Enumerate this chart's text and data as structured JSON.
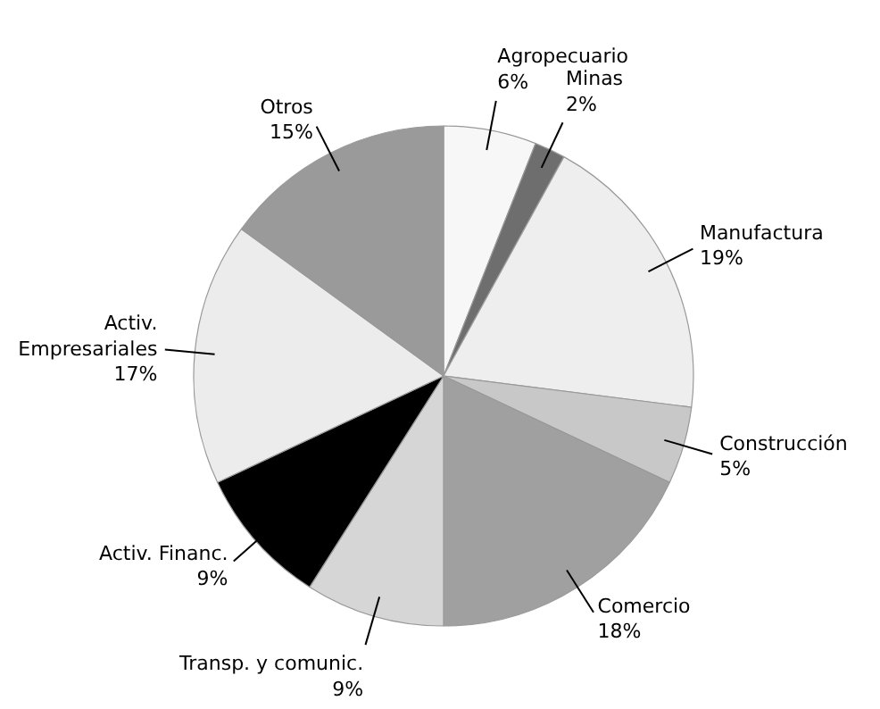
{
  "chart_data": {
    "type": "pie",
    "categories": [
      "Agropecuario",
      "Minas",
      "Manufactura",
      "Construcción",
      "Comercio",
      "Transp. y comunic.",
      "Activ. Financ.",
      "Activ. Empresariales",
      "Otros"
    ],
    "values": [
      6,
      2,
      19,
      5,
      18,
      9,
      9,
      17,
      15
    ],
    "value_labels": [
      "6%",
      "2%",
      "19%",
      "5%",
      "18%",
      "9%",
      "9%",
      "17%",
      "15%"
    ],
    "colors": [
      "#f7f7f7",
      "#6e6e6e",
      "#eeeeee",
      "#c8c8c8",
      "#a0a0a0",
      "#d6d6d6",
      "#000000",
      "#ececec",
      "#9a9a9a"
    ]
  }
}
